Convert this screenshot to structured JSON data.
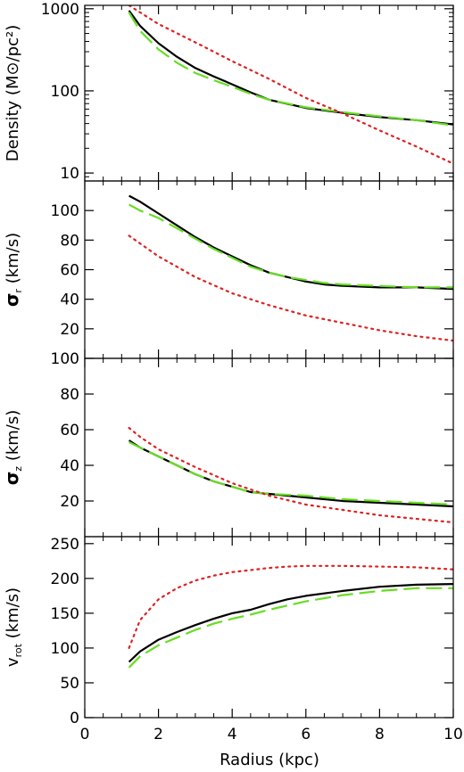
{
  "colors": {
    "black_series": "#000000",
    "green_series": "#66dd22",
    "red_series": "#dd2222"
  },
  "chart_data": [
    {
      "type": "line",
      "ylabel_prefix": "Density (M",
      "ylabel_symbol": "⊙",
      "ylabel_suffix": "/pc²)",
      "yscale": "log",
      "ylim": [
        8,
        1100
      ],
      "xlim": [
        0,
        10
      ],
      "yticks": [
        10,
        100,
        1000
      ],
      "ytick_labels": [
        "10",
        "100",
        "1000"
      ],
      "series": [
        {
          "style": "solid",
          "color": "#000000",
          "x": [
            1.2,
            1.5,
            2,
            2.5,
            3,
            3.5,
            4,
            4.5,
            5,
            6,
            7,
            8,
            9,
            10
          ],
          "y": [
            950,
            620,
            380,
            260,
            190,
            150,
            120,
            96,
            78,
            62,
            54,
            48,
            44,
            39
          ]
        },
        {
          "style": "dashed",
          "color": "#66dd22",
          "x": [
            1.2,
            1.5,
            2,
            2.5,
            3,
            3.5,
            4,
            4.5,
            5,
            6,
            7,
            8,
            9,
            10
          ],
          "y": [
            900,
            540,
            320,
            220,
            165,
            135,
            112,
            92,
            78,
            63,
            55,
            49,
            44,
            38
          ]
        },
        {
          "style": "dotted",
          "color": "#dd2222",
          "x": [
            1.2,
            2,
            3,
            4,
            5,
            6,
            7,
            8,
            9,
            10
          ],
          "y": [
            1100,
            650,
            390,
            230,
            140,
            82,
            53,
            33,
            21,
            13
          ]
        }
      ]
    },
    {
      "type": "line",
      "ylabel_symbol": "σ",
      "ylabel_sub": "r",
      "ylabel_suffix": "  (km/s)",
      "ylim": [
        0,
        120
      ],
      "xlim": [
        0,
        10
      ],
      "yticks": [
        20,
        40,
        60,
        80,
        100
      ],
      "ytick_labels": [
        "20",
        "40",
        "60",
        "80",
        "100"
      ],
      "series": [
        {
          "style": "solid",
          "color": "#000000",
          "x": [
            1.2,
            1.5,
            2,
            2.5,
            3,
            3.5,
            4,
            4.5,
            5,
            5.5,
            6,
            6.5,
            7,
            8,
            9,
            10
          ],
          "y": [
            110,
            106,
            98,
            90,
            82,
            75,
            69,
            63,
            58,
            55,
            52,
            50,
            49,
            48,
            48,
            47
          ]
        },
        {
          "style": "dashed",
          "color": "#66dd22",
          "x": [
            1.2,
            1.5,
            2,
            2.5,
            3,
            3.5,
            4,
            4.5,
            5,
            5.5,
            6,
            6.5,
            7,
            8,
            9,
            10
          ],
          "y": [
            104,
            100,
            95,
            88,
            81,
            74,
            68,
            62,
            58,
            55,
            53,
            51,
            50,
            49,
            48,
            48
          ]
        },
        {
          "style": "dotted",
          "color": "#dd2222",
          "x": [
            1.2,
            2,
            3,
            4,
            5,
            6,
            7,
            8,
            9,
            10
          ],
          "y": [
            83,
            69,
            55,
            44,
            36,
            29,
            24,
            19,
            15,
            12
          ]
        }
      ]
    },
    {
      "type": "line",
      "ylabel_symbol": "σ",
      "ylabel_sub": "z",
      "ylabel_suffix": "  (km/s)",
      "ylim": [
        0,
        100
      ],
      "xlim": [
        0,
        10
      ],
      "yticks": [
        20,
        40,
        60,
        80,
        100
      ],
      "ytick_labels": [
        "20",
        "40",
        "60",
        "80",
        "100"
      ],
      "series": [
        {
          "style": "solid",
          "color": "#000000",
          "x": [
            1.2,
            1.5,
            2,
            2.5,
            3,
            3.5,
            4,
            4.5,
            5,
            6,
            7,
            8,
            9,
            10
          ],
          "y": [
            54,
            50,
            45,
            40,
            35,
            31,
            28,
            25,
            24,
            22,
            20,
            19,
            18,
            17
          ]
        },
        {
          "style": "dashed",
          "color": "#66dd22",
          "x": [
            1.2,
            1.5,
            2,
            2.5,
            3,
            3.5,
            4,
            4.5,
            5,
            6,
            7,
            8,
            9,
            10
          ],
          "y": [
            53,
            50,
            45,
            40,
            35,
            31,
            28,
            25,
            24,
            23,
            21,
            20,
            19,
            18
          ]
        },
        {
          "style": "dotted",
          "color": "#dd2222",
          "x": [
            1.2,
            1.5,
            2,
            3,
            4,
            5,
            6,
            7,
            8,
            9,
            10
          ],
          "y": [
            61,
            56,
            49,
            39,
            30,
            23,
            18,
            15,
            12,
            10,
            8
          ]
        }
      ]
    },
    {
      "type": "line",
      "ylabel_prefix": "v",
      "ylabel_sub": "rot",
      "ylabel_suffix": " (km/s)",
      "ylim": [
        0,
        260
      ],
      "xlim": [
        0,
        10
      ],
      "xlabel": "Radius (kpc)",
      "xticks": [
        0,
        2,
        4,
        6,
        8,
        10
      ],
      "xtick_labels": [
        "0",
        "2",
        "4",
        "6",
        "8",
        "10"
      ],
      "yticks": [
        0,
        50,
        100,
        150,
        200,
        250
      ],
      "ytick_labels": [
        "0",
        "50",
        "100",
        "150",
        "200",
        "250"
      ],
      "series": [
        {
          "style": "solid",
          "color": "#000000",
          "x": [
            1.2,
            1.5,
            2,
            2.5,
            3,
            3.5,
            4,
            4.5,
            5,
            5.5,
            6,
            7,
            8,
            9,
            10
          ],
          "y": [
            80,
            95,
            112,
            123,
            133,
            142,
            150,
            155,
            163,
            170,
            175,
            182,
            188,
            191,
            192
          ]
        },
        {
          "style": "dashed",
          "color": "#66dd22",
          "x": [
            1.2,
            1.5,
            2,
            2.5,
            3,
            3.5,
            4,
            4.5,
            5,
            5.5,
            6,
            7,
            8,
            9,
            10
          ],
          "y": [
            72,
            88,
            104,
            115,
            126,
            135,
            142,
            148,
            155,
            161,
            167,
            176,
            182,
            186,
            186
          ]
        },
        {
          "style": "dotted",
          "color": "#dd2222",
          "x": [
            1.2,
            1.5,
            2,
            2.5,
            3,
            3.5,
            4,
            4.5,
            5,
            5.5,
            6,
            7,
            8,
            9,
            10
          ],
          "y": [
            100,
            140,
            170,
            186,
            197,
            204,
            209,
            212,
            215,
            217,
            218,
            218,
            217,
            216,
            213
          ]
        }
      ]
    }
  ]
}
